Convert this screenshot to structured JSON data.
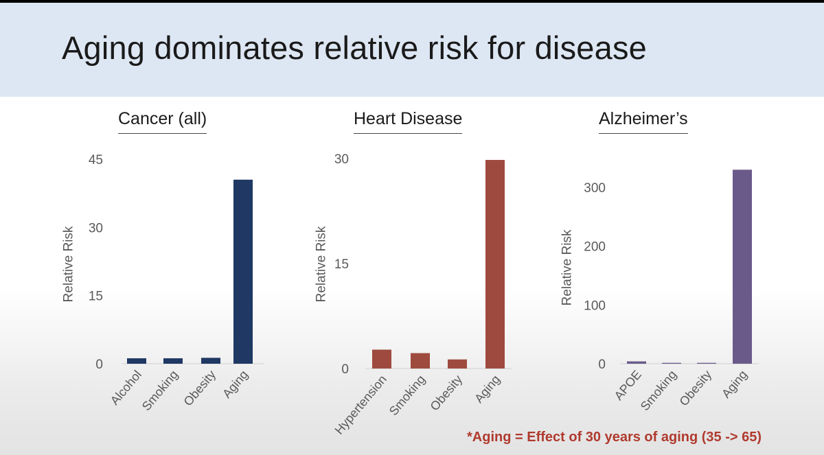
{
  "slide": {
    "title": "Aging dominates relative risk for disease",
    "footnote": "*Aging = Effect of 30 years of aging (35 -> 65)"
  },
  "chart_data": [
    {
      "type": "bar",
      "title": "Cancer (all)",
      "ylabel": "Relative Risk",
      "categories": [
        "Alcohol",
        "Smoking",
        "Obesity",
        "Aging"
      ],
      "values": [
        1.2,
        1.2,
        1.3,
        40.5
      ],
      "yticks": [
        0,
        15,
        30,
        45
      ],
      "ylim": [
        0,
        45
      ],
      "color": "#1f3864"
    },
    {
      "type": "bar",
      "title": "Heart Disease",
      "ylabel": "Relative Risk",
      "categories": [
        "Hypertension",
        "Smoking",
        "Obesity",
        "Aging"
      ],
      "values": [
        2.7,
        2.2,
        1.3,
        29.8
      ],
      "yticks": [
        0,
        15,
        30
      ],
      "ylim": [
        0,
        30
      ],
      "color": "#9e4a3e"
    },
    {
      "type": "bar",
      "title": "Alzheimer’s",
      "ylabel": "Relative Risk",
      "categories": [
        "APOE",
        "Smoking",
        "Obesity",
        "Aging"
      ],
      "values": [
        4,
        1.5,
        1.5,
        330
      ],
      "yticks": [
        0,
        100,
        200,
        300
      ],
      "ylim": [
        0,
        300
      ],
      "color": "#6a5a8a"
    }
  ]
}
